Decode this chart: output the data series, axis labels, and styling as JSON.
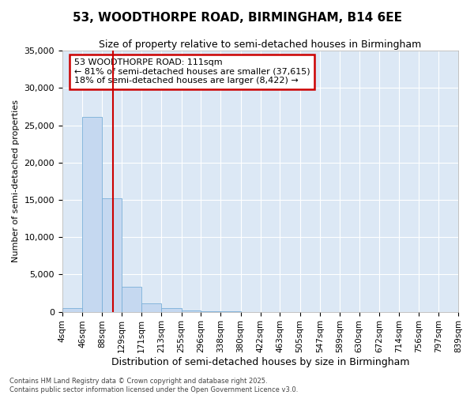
{
  "title1": "53, WOODTHORPE ROAD, BIRMINGHAM, B14 6EE",
  "title2": "Size of property relative to semi-detached houses in Birmingham",
  "xlabel": "Distribution of semi-detached houses by size in Birmingham",
  "ylabel": "Number of semi-detached properties",
  "annotation_title": "53 WOODTHORPE ROAD: 111sqm",
  "annotation_line1": "← 81% of semi-detached houses are smaller (37,615)",
  "annotation_line2": "18% of semi-detached houses are larger (8,422) →",
  "footer1": "Contains HM Land Registry data © Crown copyright and database right 2025.",
  "footer2": "Contains public sector information licensed under the Open Government Licence v3.0.",
  "property_size": 111,
  "bar_edges": [
    4,
    46,
    88,
    129,
    171,
    213,
    255,
    296,
    338,
    380,
    422,
    463,
    505,
    547,
    589,
    630,
    672,
    714,
    756,
    797,
    839
  ],
  "bar_heights": [
    500,
    26100,
    15200,
    3300,
    1100,
    500,
    150,
    50,
    20,
    10,
    5,
    3,
    2,
    2,
    1,
    1,
    1,
    0,
    0,
    0
  ],
  "bar_color": "#c5d8f0",
  "bar_edge_color": "#7ab0d8",
  "red_line_color": "#cc0000",
  "bg_color": "#dce8f5",
  "grid_color": "#ffffff",
  "annotation_box_color": "#cc0000",
  "fig_bg_color": "#ffffff",
  "ylim": [
    0,
    35000
  ],
  "yticks": [
    0,
    5000,
    10000,
    15000,
    20000,
    25000,
    30000,
    35000
  ]
}
